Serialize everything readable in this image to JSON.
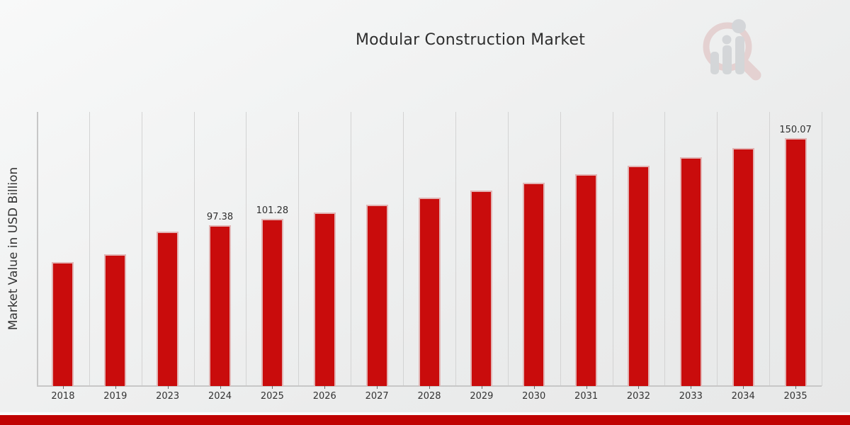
{
  "chart_data": {
    "type": "bar",
    "title": "Modular Construction Market",
    "xlabel": "",
    "ylabel": "Market Value in USD Billion",
    "categories": [
      "2018",
      "2019",
      "2023",
      "2024",
      "2025",
      "2026",
      "2027",
      "2028",
      "2029",
      "2030",
      "2031",
      "2032",
      "2033",
      "2034",
      "2035"
    ],
    "values": [
      75.0,
      79.9,
      93.5,
      97.38,
      101.28,
      105.3,
      109.6,
      114.0,
      118.5,
      123.3,
      128.2,
      133.4,
      138.7,
      144.3,
      150.07
    ],
    "data_labels": {
      "2024": "97.38",
      "2025": "101.28",
      "2035": "150.07"
    },
    "ylim": [
      0,
      166
    ],
    "grid": "vertical-only",
    "legend": "none",
    "bar_color": "#c90c0c",
    "bar_edge_color": "#e2b5b5",
    "footer_band_color": "#c00202",
    "background_color": "#eeefef"
  },
  "watermark": {
    "name": "magnifier-bar-chart-logo",
    "ring_color": "#d08f8f",
    "bars_color": "#9aa0a8"
  }
}
